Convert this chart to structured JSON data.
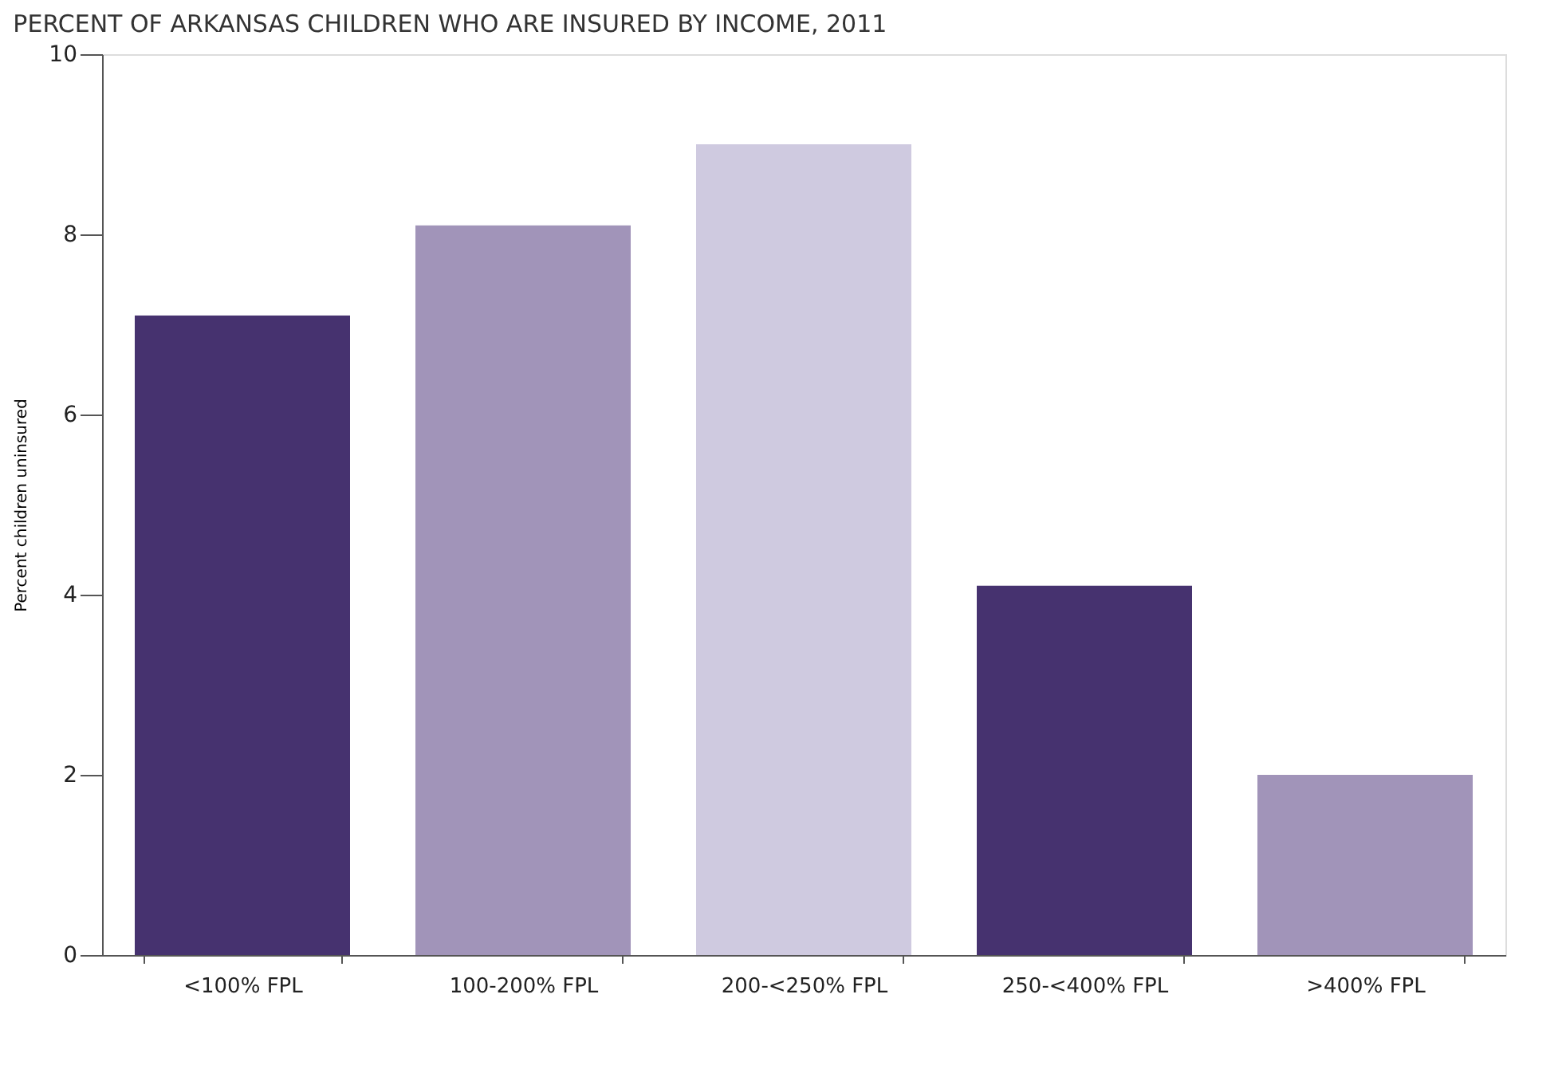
{
  "chart_data": {
    "type": "bar",
    "title": "PERCENT OF ARKANSAS CHILDREN WHO ARE INSURED BY INCOME, 2011",
    "ylabel": "Percent children uninsured",
    "categories": [
      "<100% FPL",
      "100-200% FPL",
      "200-<250% FPL",
      "250-<400% FPL",
      ">400% FPL"
    ],
    "values": [
      7.1,
      8.1,
      9.0,
      4.1,
      2.0
    ],
    "colors": [
      "#46326f",
      "#a194b9",
      "#cfcae0",
      "#46326f",
      "#a194b9"
    ],
    "ylim": [
      0,
      10
    ],
    "yticks": [
      0,
      2,
      4,
      6,
      8,
      10
    ],
    "grid": false
  }
}
